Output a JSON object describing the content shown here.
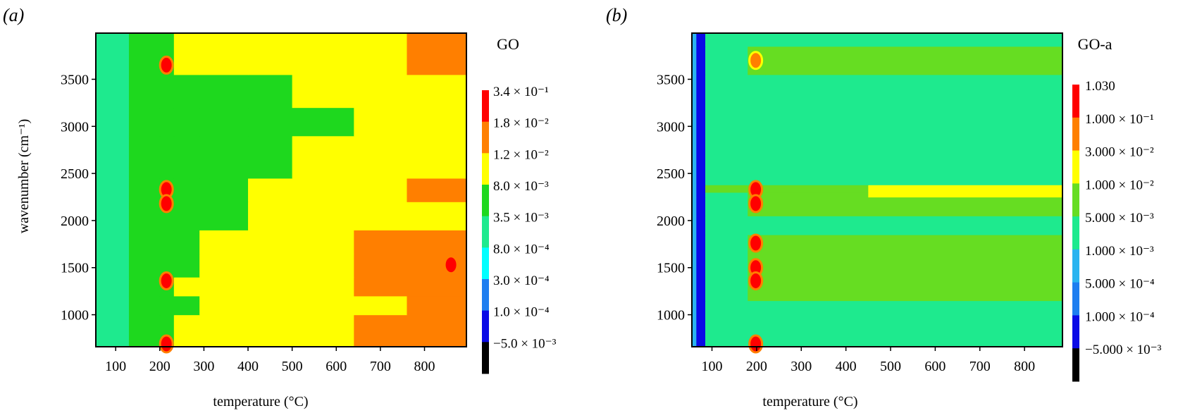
{
  "figure": {
    "panels": [
      {
        "panel_label": "(a)",
        "colorbar_title": "GO",
        "colorbar_labels": [
          "3.4 × 10⁻¹",
          "1.8 × 10⁻²",
          "1.2 × 10⁻²",
          "8.0 × 10⁻³",
          "3.5 × 10⁻³",
          "8.0 × 10⁻⁴",
          "3.0 × 10⁻⁴",
          "1.0 × 10⁻⁴",
          "−5.0 × 10⁻³"
        ]
      },
      {
        "panel_label": "(b)",
        "colorbar_title": "GO-a",
        "colorbar_labels": [
          "1.030",
          "1.000 × 10⁻¹",
          "3.000 × 10⁻²",
          "1.000 × 10⁻²",
          "5.000 × 10⁻³",
          "1.000 × 10⁻³",
          "5.000 × 10⁻⁴",
          "1.000 × 10⁻⁴",
          "−5.000 × 10⁻³"
        ]
      }
    ]
  },
  "chart_data": [
    {
      "type": "heatmap",
      "title": "GO",
      "xlabel": "temperature (°C)",
      "ylabel": "wavenumber (cm⁻¹)",
      "xlim": [
        55,
        895
      ],
      "ylim": [
        660,
        3990
      ],
      "xticks": [
        100,
        200,
        300,
        400,
        500,
        600,
        700,
        800
      ],
      "yticks": [
        1000,
        1500,
        2000,
        2500,
        3000,
        3500
      ],
      "colorbar_levels": [
        -0.005,
        0.0001,
        0.0003,
        0.0008,
        0.0035,
        0.008,
        0.012,
        0.018,
        0.34
      ],
      "colors": [
        "#000000",
        "#0a0ae6",
        "#1e7ef0",
        "#00ffff",
        "#1eea8e",
        "#1ed81e",
        "#ffff00",
        "#ff7f00",
        "#ff0000"
      ],
      "cells": {
        "temperature_edges": [
          55,
          130,
          200,
          232,
          290,
          400,
          500,
          640,
          760,
          895
        ],
        "wavenumber_edges": [
          660,
          1000,
          1200,
          1400,
          1650,
          1900,
          2200,
          2450,
          2900,
          3200,
          3550,
          3990
        ],
        "levels": [
          [
            4,
            5,
            5,
            6,
            6,
            6,
            6,
            7,
            7
          ],
          [
            4,
            5,
            5,
            5,
            6,
            6,
            6,
            6,
            7
          ],
          [
            4,
            5,
            5,
            6,
            6,
            6,
            6,
            7,
            7
          ],
          [
            4,
            5,
            5,
            5,
            6,
            6,
            6,
            7,
            7
          ],
          [
            4,
            5,
            5,
            5,
            6,
            6,
            6,
            7,
            7
          ],
          [
            4,
            5,
            5,
            5,
            5,
            6,
            6,
            6,
            6
          ],
          [
            4,
            5,
            5,
            5,
            5,
            6,
            6,
            6,
            7
          ],
          [
            4,
            5,
            5,
            5,
            5,
            5,
            6,
            6,
            6
          ],
          [
            4,
            5,
            5,
            5,
            5,
            5,
            5,
            6,
            6
          ],
          [
            4,
            5,
            5,
            5,
            5,
            5,
            6,
            6,
            6
          ],
          [
            4,
            5,
            5,
            6,
            6,
            6,
            6,
            6,
            7
          ]
        ],
        "hotspots": [
          {
            "temperature": 215,
            "wavenumber": 2330,
            "level": 8
          },
          {
            "temperature": 215,
            "wavenumber": 2180,
            "level": 8
          },
          {
            "temperature": 215,
            "wavenumber": 3650,
            "level": 8
          },
          {
            "temperature": 215,
            "wavenumber": 1360,
            "level": 8
          },
          {
            "temperature": 215,
            "wavenumber": 690,
            "level": 8
          },
          {
            "temperature": 860,
            "wavenumber": 1530,
            "level": 8
          }
        ]
      }
    },
    {
      "type": "heatmap",
      "title": "GO-a",
      "xlabel": "temperature (°C)",
      "ylabel": "",
      "xlim": [
        55,
        885
      ],
      "ylim": [
        660,
        3990
      ],
      "xticks": [
        100,
        200,
        300,
        400,
        500,
        600,
        700,
        800
      ],
      "yticks": [
        1000,
        1500,
        2000,
        2500,
        3000,
        3500
      ],
      "colorbar_levels": [
        -0.005,
        0.0001,
        0.0005,
        0.001,
        0.005,
        0.01,
        0.03,
        0.1,
        1.03
      ],
      "colors": [
        "#000000",
        "#0a0ae6",
        "#1e7ef0",
        "#2ab4f0",
        "#1eea8e",
        "#66dd22",
        "#ffff00",
        "#ff7f00",
        "#ff0000"
      ],
      "cells": {
        "temperature_edges": [
          55,
          65,
          85,
          180,
          220,
          450,
          885
        ],
        "wavenumber_edges": [
          660,
          1150,
          1850,
          2050,
          2250,
          2300,
          2380,
          3550,
          3850,
          3990
        ],
        "levels": [
          [
            3,
            1,
            4,
            4,
            4,
            4
          ],
          [
            3,
            1,
            4,
            5,
            5,
            5
          ],
          [
            3,
            1,
            4,
            4,
            4,
            4
          ],
          [
            3,
            1,
            4,
            5,
            5,
            5
          ],
          [
            3,
            1,
            4,
            5,
            5,
            6
          ],
          [
            3,
            1,
            5,
            5,
            5,
            6
          ],
          [
            3,
            1,
            4,
            4,
            4,
            4
          ],
          [
            3,
            1,
            4,
            5,
            5,
            5
          ],
          [
            3,
            1,
            4,
            4,
            4,
            4
          ]
        ],
        "hotspots": [
          {
            "temperature": 198,
            "wavenumber": 2330,
            "level": 8
          },
          {
            "temperature": 198,
            "wavenumber": 2180,
            "level": 8
          },
          {
            "temperature": 198,
            "wavenumber": 1760,
            "level": 8
          },
          {
            "temperature": 198,
            "wavenumber": 1500,
            "level": 8
          },
          {
            "temperature": 198,
            "wavenumber": 1360,
            "level": 8
          },
          {
            "temperature": 198,
            "wavenumber": 3700,
            "level": 7
          },
          {
            "temperature": 198,
            "wavenumber": 690,
            "level": 8
          }
        ]
      }
    }
  ]
}
